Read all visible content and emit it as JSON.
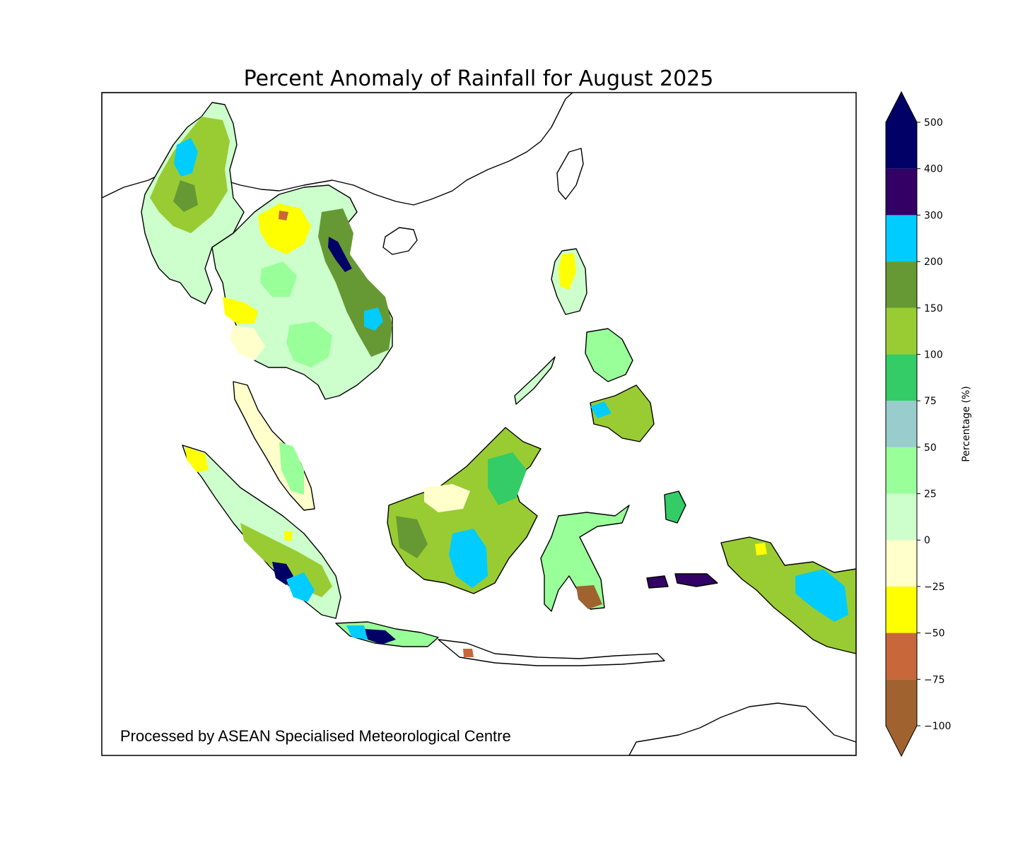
{
  "title": "Percent Anomaly of Rainfall for August 2025",
  "credit": "Processed by ASEAN Specialised Meteorological Centre",
  "colorbar": {
    "label": "Percentage (%)",
    "levels": [
      {
        "from": -100,
        "to": -75,
        "color": "#a0622f"
      },
      {
        "from": -75,
        "to": -50,
        "color": "#c8673a"
      },
      {
        "from": -50,
        "to": -25,
        "color": "#ffff00"
      },
      {
        "from": -25,
        "to": 0,
        "color": "#ffffcc"
      },
      {
        "from": 0,
        "to": 25,
        "color": "#ccffcc"
      },
      {
        "from": 25,
        "to": 50,
        "color": "#99ff99"
      },
      {
        "from": 50,
        "to": 75,
        "color": "#99cccc"
      },
      {
        "from": 75,
        "to": 100,
        "color": "#33cc66"
      },
      {
        "from": 100,
        "to": 150,
        "color": "#99cc33"
      },
      {
        "from": 150,
        "to": 200,
        "color": "#669933"
      },
      {
        "from": 200,
        "to": 300,
        "color": "#00ccff"
      },
      {
        "from": 300,
        "to": 400,
        "color": "#330066"
      },
      {
        "from": 400,
        "to": 500,
        "color": "#000066"
      }
    ],
    "ticks": [
      "−100",
      "−75",
      "−50",
      "−25",
      "0",
      "25",
      "50",
      "75",
      "100",
      "150",
      "200",
      "300",
      "400",
      "500"
    ],
    "extend_low_color": "#a0622f",
    "extend_high_color": "#000066"
  },
  "map": {
    "ocean_color": "#ffffff",
    "coastline_color": "#000000"
  }
}
